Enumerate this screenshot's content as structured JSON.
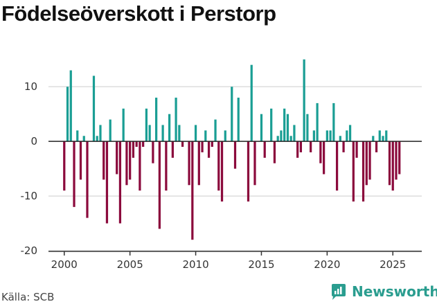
{
  "title": "Födelseöverskott i Perstorp",
  "source": "Källa: SCB",
  "brand": "Newsworthy",
  "chart_data": {
    "type": "bar",
    "title": "Födelseöverskott i Perstorp",
    "xlabel": "",
    "ylabel": "",
    "ylim": [
      -20,
      17
    ],
    "xlim": [
      1998.8,
      2027.2
    ],
    "yticks": [
      10,
      0,
      -10,
      -20
    ],
    "xticks": [
      2000,
      2005,
      2010,
      2015,
      2020,
      2025
    ],
    "grid": true,
    "colors": {
      "positive": "#1a9e94",
      "negative": "#8b0a3c",
      "grid": "#dddddd",
      "zero": "#222222"
    },
    "x": [
      2000.0,
      2000.25,
      2000.5,
      2000.75,
      2001.0,
      2001.25,
      2001.5,
      2001.75,
      2002.0,
      2002.25,
      2002.5,
      2002.75,
      2003.0,
      2003.25,
      2003.5,
      2003.75,
      2004.0,
      2004.25,
      2004.5,
      2004.75,
      2005.0,
      2005.25,
      2005.5,
      2005.75,
      2006.0,
      2006.25,
      2006.5,
      2006.75,
      2007.0,
      2007.25,
      2007.5,
      2007.75,
      2008.0,
      2008.25,
      2008.5,
      2008.75,
      2009.0,
      2009.25,
      2009.5,
      2009.75,
      2010.0,
      2010.25,
      2010.5,
      2010.75,
      2011.0,
      2011.25,
      2011.5,
      2011.75,
      2012.0,
      2012.25,
      2012.5,
      2012.75,
      2013.0,
      2013.25,
      2013.5,
      2013.75,
      2014.0,
      2014.25,
      2014.5,
      2014.75,
      2015.0,
      2015.25,
      2015.5,
      2015.75,
      2016.0,
      2016.25,
      2016.5,
      2016.75,
      2017.0,
      2017.25,
      2017.5,
      2017.75,
      2018.0,
      2018.25,
      2018.5,
      2018.75,
      2019.0,
      2019.25,
      2019.5,
      2019.75,
      2020.0,
      2020.25,
      2020.5,
      2020.75,
      2021.0,
      2021.25,
      2021.5,
      2021.75,
      2022.0,
      2022.25,
      2022.5,
      2022.75,
      2023.0,
      2023.25,
      2023.5,
      2023.75,
      2024.0,
      2024.25,
      2024.5,
      2024.75,
      2025.0,
      2025.25,
      2025.5,
      2025.75
    ],
    "values": [
      -9,
      10,
      13,
      -12,
      2,
      -7,
      1,
      -14,
      0,
      12,
      1,
      3,
      -7,
      -15,
      4,
      0,
      -6,
      -15,
      6,
      -8,
      -7,
      -3,
      -1,
      -9,
      -1,
      6,
      3,
      -4,
      8,
      -16,
      3,
      -9,
      5,
      -3,
      8,
      3,
      -1,
      0,
      -8,
      -18,
      3,
      -8,
      -2,
      2,
      -3,
      -1,
      4,
      -9,
      -11,
      2,
      0,
      10,
      -5,
      8,
      0,
      0,
      -11,
      14,
      -8,
      0,
      5,
      -3,
      0,
      6,
      -4,
      1,
      2,
      6,
      5,
      1,
      3,
      -3,
      -2,
      15,
      5,
      -2,
      2,
      7,
      -4,
      -6,
      2,
      2,
      7,
      -9,
      1,
      -2,
      2,
      3,
      -11,
      -3,
      0,
      -11,
      -8,
      -7,
      1,
      -2,
      2,
      1,
      2,
      -8,
      -9,
      -7,
      -6,
      0
    ]
  }
}
